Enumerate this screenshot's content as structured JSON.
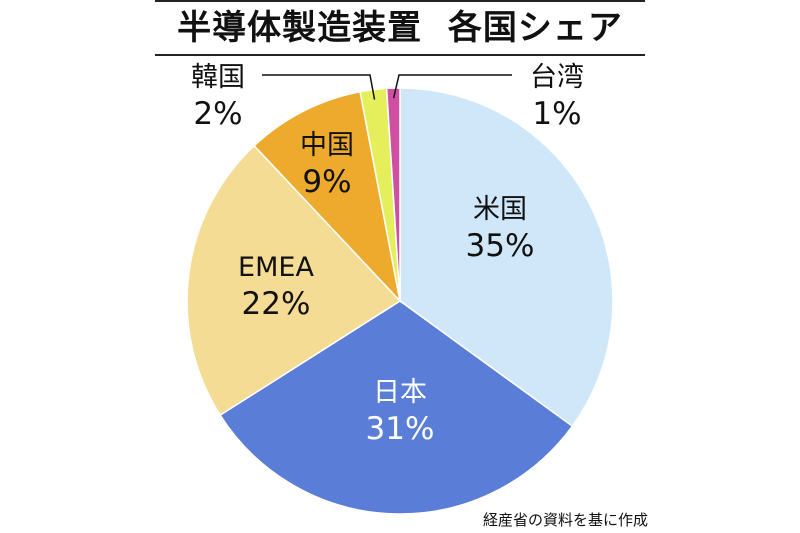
{
  "chart_data": {
    "type": "pie",
    "title": "半導体製造装置  各国シェア",
    "start": "top",
    "direction": "clockwise",
    "slices": [
      {
        "label": "米国",
        "value": 35,
        "value_label": "35%",
        "color": "#cfe7f9",
        "text_color": "#111111"
      },
      {
        "label": "日本",
        "value": 31,
        "value_label": "31%",
        "color": "#5a7ed8",
        "text_color": "#ffffff"
      },
      {
        "label": "EMEA",
        "value": 22,
        "value_label": "22%",
        "color": "#f5dc95",
        "text_color": "#111111"
      },
      {
        "label": "中国",
        "value": 9,
        "value_label": "9%",
        "color": "#eeaa2c",
        "text_color": "#111111"
      },
      {
        "label": "韓国",
        "value": 2,
        "value_label": "2%",
        "color": "#e5ef5c",
        "text_color": "#111111"
      },
      {
        "label": "台湾",
        "value": 1,
        "value_label": "1%",
        "color": "#cf4fa2",
        "text_color": "#111111"
      }
    ],
    "source": "経産省の資料を基に作成"
  }
}
